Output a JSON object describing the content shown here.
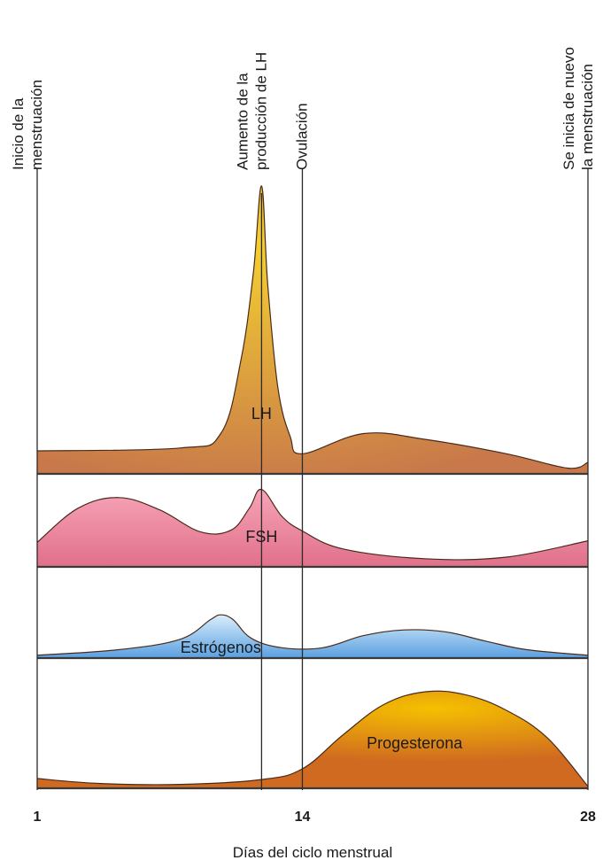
{
  "chart_data": {
    "type": "area",
    "x_range": [
      1,
      28
    ],
    "xticks": [
      "1",
      "14",
      "28"
    ],
    "xlabel": "Días del ciclo menstrual",
    "events": [
      {
        "day": 1,
        "label_lines": [
          "Inicio de la",
          "menstruación"
        ]
      },
      {
        "day": 12,
        "label_lines": [
          "Aumento de la",
          "producción de LH"
        ]
      },
      {
        "day": 14,
        "label_lines": [
          "Ovulación"
        ]
      },
      {
        "day": 28,
        "label_lines": [
          "Se inicia de nuevo",
          "la menstruación"
        ]
      }
    ],
    "series": [
      {
        "name": "LH",
        "color": "#c8784a",
        "highlight": "#f4d030",
        "points": [
          [
            1,
            0.08
          ],
          [
            8,
            0.09
          ],
          [
            10,
            0.14
          ],
          [
            11,
            0.4
          ],
          [
            11.6,
            0.7
          ],
          [
            12,
            1.0
          ],
          [
            12.3,
            0.66
          ],
          [
            12.8,
            0.3
          ],
          [
            13.4,
            0.13
          ],
          [
            14,
            0.07
          ],
          [
            17,
            0.14
          ],
          [
            20,
            0.12
          ],
          [
            24,
            0.07
          ],
          [
            27,
            0.02
          ],
          [
            28,
            0.04
          ]
        ]
      },
      {
        "name": "FSH",
        "color": "#e0708a",
        "highlight": "#f7a4b8",
        "points": [
          [
            1,
            0.3
          ],
          [
            3,
            0.72
          ],
          [
            5,
            0.85
          ],
          [
            7,
            0.7
          ],
          [
            9,
            0.43
          ],
          [
            10.5,
            0.45
          ],
          [
            11.4,
            0.72
          ],
          [
            12,
            0.95
          ],
          [
            13,
            0.62
          ],
          [
            14,
            0.44
          ],
          [
            16,
            0.22
          ],
          [
            20,
            0.1
          ],
          [
            24,
            0.12
          ],
          [
            28,
            0.32
          ]
        ]
      },
      {
        "name": "Estrógenos",
        "color": "#5aa0e0",
        "highlight": "#d8eefc",
        "points": [
          [
            1,
            0.06
          ],
          [
            5,
            0.18
          ],
          [
            8,
            0.4
          ],
          [
            9.5,
            0.82
          ],
          [
            10,
            0.92
          ],
          [
            10.6,
            0.82
          ],
          [
            11.5,
            0.42
          ],
          [
            13,
            0.22
          ],
          [
            15,
            0.22
          ],
          [
            17,
            0.48
          ],
          [
            19,
            0.6
          ],
          [
            21,
            0.56
          ],
          [
            23,
            0.36
          ],
          [
            25,
            0.18
          ],
          [
            28,
            0.06
          ]
        ]
      },
      {
        "name": "Progesterona",
        "color": "#d06a20",
        "highlight": "#f5c000",
        "points": [
          [
            1,
            0.1
          ],
          [
            4,
            0.05
          ],
          [
            8,
            0.04
          ],
          [
            12,
            0.09
          ],
          [
            14,
            0.2
          ],
          [
            16,
            0.55
          ],
          [
            18,
            0.86
          ],
          [
            20,
            0.99
          ],
          [
            22,
            0.96
          ],
          [
            24,
            0.8
          ],
          [
            26,
            0.52
          ],
          [
            28,
            0.02
          ]
        ]
      }
    ]
  }
}
